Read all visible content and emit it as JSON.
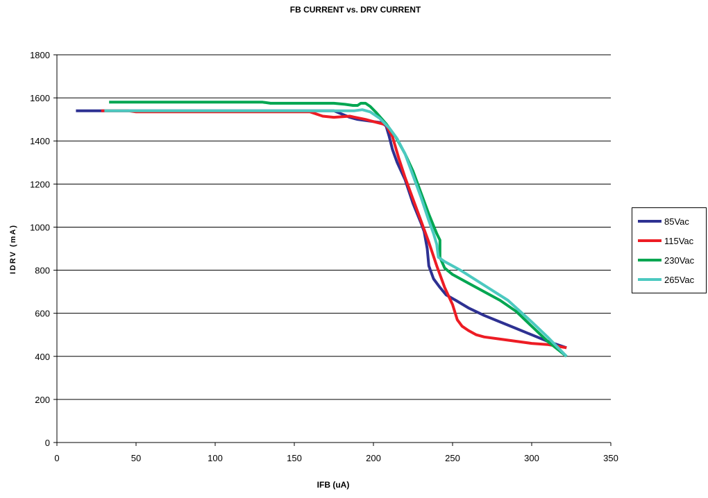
{
  "chart_data": {
    "type": "line",
    "title": "FB CURRENT vs. DRV CURRENT",
    "xlabel": "IFB (uA)",
    "ylabel": "IDRV (mA)",
    "xlim": [
      0,
      350
    ],
    "ylim": [
      0,
      1800
    ],
    "xticks": [
      0,
      50,
      100,
      150,
      200,
      250,
      300,
      350
    ],
    "yticks": [
      0,
      200,
      400,
      600,
      800,
      1000,
      1200,
      1400,
      1600,
      1800
    ],
    "grid": "horizontal",
    "legend_position": "right",
    "series": [
      {
        "name": "85Vac",
        "color": "#2e3192",
        "points": [
          [
            12,
            1540
          ],
          [
            30,
            1540
          ],
          [
            60,
            1540
          ],
          [
            100,
            1540
          ],
          [
            150,
            1540
          ],
          [
            175,
            1540
          ],
          [
            185,
            1510
          ],
          [
            190,
            1500
          ],
          [
            200,
            1490
          ],
          [
            205,
            1485
          ],
          [
            208,
            1470
          ],
          [
            210,
            1420
          ],
          [
            212,
            1360
          ],
          [
            215,
            1300
          ],
          [
            220,
            1220
          ],
          [
            225,
            1110
          ],
          [
            230,
            1020
          ],
          [
            232,
            980
          ],
          [
            234,
            900
          ],
          [
            235,
            820
          ],
          [
            238,
            760
          ],
          [
            242,
            720
          ],
          [
            246,
            685
          ],
          [
            252,
            660
          ],
          [
            260,
            625
          ],
          [
            270,
            590
          ],
          [
            280,
            560
          ],
          [
            290,
            530
          ],
          [
            300,
            500
          ],
          [
            310,
            470
          ],
          [
            322,
            440
          ]
        ]
      },
      {
        "name": "115Vac",
        "color": "#ed1c24",
        "points": [
          [
            28,
            1540
          ],
          [
            45,
            1540
          ],
          [
            50,
            1535
          ],
          [
            100,
            1535
          ],
          [
            150,
            1535
          ],
          [
            160,
            1535
          ],
          [
            168,
            1515
          ],
          [
            175,
            1510
          ],
          [
            185,
            1515
          ],
          [
            195,
            1500
          ],
          [
            200,
            1490
          ],
          [
            208,
            1475
          ],
          [
            212,
            1420
          ],
          [
            216,
            1320
          ],
          [
            220,
            1230
          ],
          [
            225,
            1130
          ],
          [
            230,
            1030
          ],
          [
            235,
            930
          ],
          [
            240,
            820
          ],
          [
            245,
            720
          ],
          [
            250,
            640
          ],
          [
            253,
            570
          ],
          [
            256,
            540
          ],
          [
            260,
            520
          ],
          [
            265,
            500
          ],
          [
            270,
            490
          ],
          [
            280,
            480
          ],
          [
            290,
            470
          ],
          [
            300,
            460
          ],
          [
            310,
            455
          ],
          [
            322,
            440
          ]
        ]
      },
      {
        "name": "230Vac",
        "color": "#00a651",
        "points": [
          [
            33,
            1580
          ],
          [
            60,
            1580
          ],
          [
            100,
            1580
          ],
          [
            130,
            1580
          ],
          [
            135,
            1575
          ],
          [
            150,
            1575
          ],
          [
            175,
            1575
          ],
          [
            182,
            1570
          ],
          [
            187,
            1565
          ],
          [
            190,
            1565
          ],
          [
            192,
            1575
          ],
          [
            195,
            1575
          ],
          [
            198,
            1560
          ],
          [
            202,
            1530
          ],
          [
            208,
            1480
          ],
          [
            214,
            1420
          ],
          [
            220,
            1340
          ],
          [
            225,
            1260
          ],
          [
            230,
            1160
          ],
          [
            235,
            1060
          ],
          [
            240,
            970
          ],
          [
            242,
            940
          ],
          [
            242,
            860
          ],
          [
            245,
            810
          ],
          [
            250,
            780
          ],
          [
            260,
            740
          ],
          [
            270,
            700
          ],
          [
            280,
            660
          ],
          [
            290,
            610
          ],
          [
            300,
            540
          ],
          [
            310,
            470
          ],
          [
            322,
            400
          ]
        ]
      },
      {
        "name": "265Vac",
        "color": "#4cc9c0",
        "points": [
          [
            30,
            1540
          ],
          [
            60,
            1540
          ],
          [
            100,
            1540
          ],
          [
            150,
            1540
          ],
          [
            175,
            1540
          ],
          [
            188,
            1540
          ],
          [
            193,
            1545
          ],
          [
            198,
            1535
          ],
          [
            204,
            1505
          ],
          [
            210,
            1460
          ],
          [
            215,
            1410
          ],
          [
            220,
            1340
          ],
          [
            225,
            1240
          ],
          [
            230,
            1140
          ],
          [
            235,
            1030
          ],
          [
            238,
            970
          ],
          [
            240,
            920
          ],
          [
            241,
            860
          ],
          [
            245,
            840
          ],
          [
            255,
            800
          ],
          [
            270,
            730
          ],
          [
            285,
            660
          ],
          [
            300,
            560
          ],
          [
            310,
            490
          ],
          [
            322,
            400
          ]
        ]
      }
    ]
  }
}
